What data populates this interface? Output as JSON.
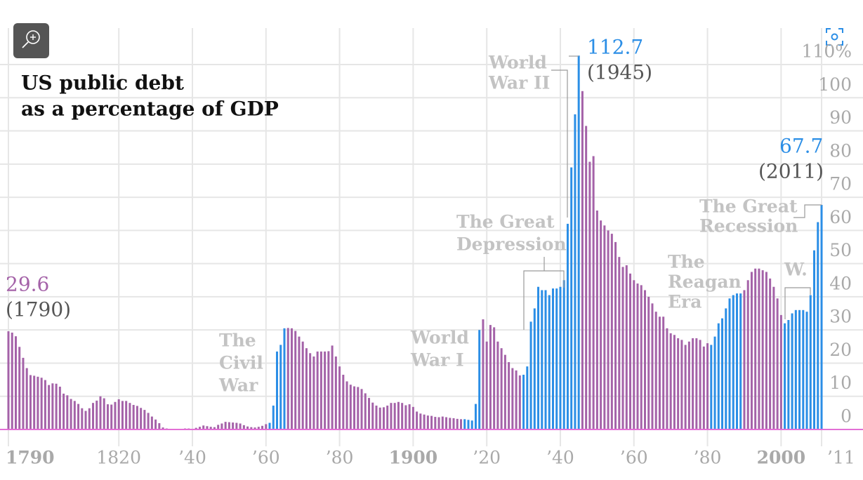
{
  "chart_data": {
    "type": "bar",
    "title": [
      "US public debt",
      "as a percentage of GDP"
    ],
    "x": [
      1790,
      1791,
      1792,
      1793,
      1794,
      1795,
      1796,
      1797,
      1798,
      1799,
      1800,
      1801,
      1802,
      1803,
      1804,
      1805,
      1806,
      1807,
      1808,
      1809,
      1810,
      1811,
      1812,
      1813,
      1814,
      1815,
      1816,
      1817,
      1818,
      1819,
      1820,
      1821,
      1822,
      1823,
      1824,
      1825,
      1826,
      1827,
      1828,
      1829,
      1830,
      1831,
      1832,
      1833,
      1834,
      1835,
      1836,
      1837,
      1838,
      1839,
      1840,
      1841,
      1842,
      1843,
      1844,
      1845,
      1846,
      1847,
      1848,
      1849,
      1850,
      1851,
      1852,
      1853,
      1854,
      1855,
      1856,
      1857,
      1858,
      1859,
      1860,
      1861,
      1862,
      1863,
      1864,
      1865,
      1866,
      1867,
      1868,
      1869,
      1870,
      1871,
      1872,
      1873,
      1874,
      1875,
      1876,
      1877,
      1878,
      1879,
      1880,
      1881,
      1882,
      1883,
      1884,
      1885,
      1886,
      1887,
      1888,
      1889,
      1890,
      1891,
      1892,
      1893,
      1894,
      1895,
      1896,
      1897,
      1898,
      1899,
      1900,
      1901,
      1902,
      1903,
      1904,
      1905,
      1906,
      1907,
      1908,
      1909,
      1910,
      1911,
      1912,
      1913,
      1914,
      1915,
      1916,
      1917,
      1918,
      1919,
      1920,
      1921,
      1922,
      1923,
      1924,
      1925,
      1926,
      1927,
      1928,
      1929,
      1930,
      1931,
      1932,
      1933,
      1934,
      1935,
      1936,
      1937,
      1938,
      1939,
      1940,
      1941,
      1942,
      1943,
      1944,
      1945,
      1946,
      1947,
      1948,
      1949,
      1950,
      1951,
      1952,
      1953,
      1954,
      1955,
      1956,
      1957,
      1958,
      1959,
      1960,
      1961,
      1962,
      1963,
      1964,
      1965,
      1966,
      1967,
      1968,
      1969,
      1970,
      1971,
      1972,
      1973,
      1974,
      1975,
      1976,
      1977,
      1978,
      1979,
      1980,
      1981,
      1982,
      1983,
      1984,
      1985,
      1986,
      1987,
      1988,
      1989,
      1990,
      1991,
      1992,
      1993,
      1994,
      1995,
      1996,
      1997,
      1998,
      1999,
      2000,
      2001,
      2002,
      2003,
      2004,
      2005,
      2006,
      2007,
      2008,
      2009,
      2010,
      2011
    ],
    "values": [
      29.6,
      29.2,
      28.1,
      24.9,
      21.6,
      18.5,
      16.4,
      16.2,
      15.9,
      15.6,
      14.9,
      13.4,
      13.9,
      13.8,
      12.9,
      10.8,
      10.3,
      9.2,
      8.6,
      7.7,
      6.4,
      5.6,
      6.4,
      8.0,
      8.7,
      10.0,
      9.4,
      7.6,
      7.5,
      8.3,
      9.1,
      8.6,
      8.6,
      8.0,
      7.4,
      7.1,
      6.5,
      5.9,
      5.0,
      3.9,
      3.0,
      1.9,
      0.6,
      0.3,
      0.1,
      0,
      0,
      0.1,
      0.3,
      0.3,
      0.2,
      0.5,
      0.8,
      1.2,
      1.0,
      0.8,
      0.7,
      1.4,
      1.8,
      2.3,
      2.2,
      2.1,
      2.0,
      1.8,
      1.3,
      0.9,
      0.7,
      0.6,
      0.8,
      1.1,
      1.6,
      2.0,
      7.2,
      23.5,
      25.5,
      30.5,
      30.6,
      30.5,
      29.7,
      28.0,
      26.5,
      24.5,
      23.0,
      22.0,
      23.5,
      23.5,
      23.5,
      23.6,
      25.3,
      22.0,
      19.0,
      16.5,
      14.5,
      13.5,
      13.0,
      12.8,
      12.2,
      10.9,
      9.5,
      8.1,
      7.2,
      6.6,
      6.7,
      7.2,
      8.0,
      8.0,
      8.3,
      8.0,
      7.3,
      7.6,
      6.8,
      5.4,
      4.8,
      4.5,
      4.2,
      4.1,
      3.8,
      3.7,
      3.9,
      3.7,
      3.5,
      3.4,
      3.2,
      3.1,
      3.1,
      2.9,
      2.7,
      7.7,
      30.0,
      33.2,
      26.5,
      31.5,
      30.8,
      26.5,
      24.5,
      22.5,
      20.3,
      18.5,
      17.8,
      16.3,
      16.5,
      19.0,
      32.5,
      36.5,
      43.0,
      42.0,
      42.0,
      40.5,
      42.5,
      42.5,
      43.0,
      45.0,
      62.0,
      79.0,
      95.0,
      112.7,
      102.0,
      91.5,
      80.7,
      82.4,
      66.0,
      63.0,
      61.5,
      60.0,
      59.0,
      56.5,
      52.0,
      49.0,
      49.5,
      47.0,
      45.0,
      44.0,
      43.5,
      42.0,
      40.0,
      38.0,
      35.5,
      34.0,
      34.0,
      30.5,
      29.0,
      28.5,
      27.5,
      27.0,
      25.5,
      26.5,
      27.5,
      27.5,
      27.0,
      25.0,
      26.0,
      25.5,
      28.0,
      32.0,
      33.5,
      36.5,
      39.5,
      40.5,
      41.0,
      41.0,
      42.0,
      45.0,
      47.5,
      48.5,
      48.5,
      48.0,
      47.5,
      45.5,
      43.0,
      39.5,
      34.5,
      32.0,
      33.0,
      35.0,
      36.0,
      36.0,
      36.0,
      35.5,
      40.5,
      54.0,
      62.5,
      67.7
    ],
    "color": "#a462a8",
    "highlight": {
      "color": "#2b8ee6",
      "ranges": [
        [
          1861,
          1865
        ],
        [
          1914,
          1918
        ],
        [
          1930,
          1945
        ],
        [
          1981,
          1989
        ],
        [
          2001,
          2011
        ]
      ]
    },
    "xlim": [
      1790,
      2011
    ],
    "xticks": [
      1790,
      {
        "value": 1820,
        "label": "1820"
      },
      {
        "value": 1840,
        "label": "’40"
      },
      {
        "value": 1860,
        "label": "’60"
      },
      {
        "value": 1880,
        "label": "’80"
      },
      1900,
      {
        "value": 1920,
        "label": "’20"
      },
      {
        "value": 1940,
        "label": "’40"
      },
      {
        "value": 1960,
        "label": "’60"
      },
      {
        "value": 1980,
        "label": "’80"
      },
      2000,
      {
        "value": 2011,
        "label": "’11"
      }
    ],
    "ylim": [
      0,
      110
    ],
    "yticks": [
      0,
      10,
      20,
      30,
      40,
      50,
      60,
      70,
      80,
      90,
      100,
      {
        "value": 110,
        "label": "110%"
      }
    ],
    "grid": true,
    "annotations": [
      {
        "lines": [
          "(1790)"
        ]
      },
      {
        "lines": [
          "(1945)"
        ]
      },
      {
        "lines": [
          "(2011)"
        ]
      },
      {
        "lines": [
          "The",
          "Civil",
          "War"
        ]
      },
      {
        "lines": [
          "World",
          "War I"
        ]
      },
      {
        "lines": [
          "The Great",
          "Depression"
        ]
      },
      {
        "lines": [
          "World",
          "War II"
        ]
      },
      {
        "lines": [
          "The",
          "Reagan",
          "Era"
        ]
      },
      {
        "lines": [
          "The Great",
          "Recession"
        ]
      },
      {
        "lines": [
          "W."
        ]
      }
    ]
  }
}
